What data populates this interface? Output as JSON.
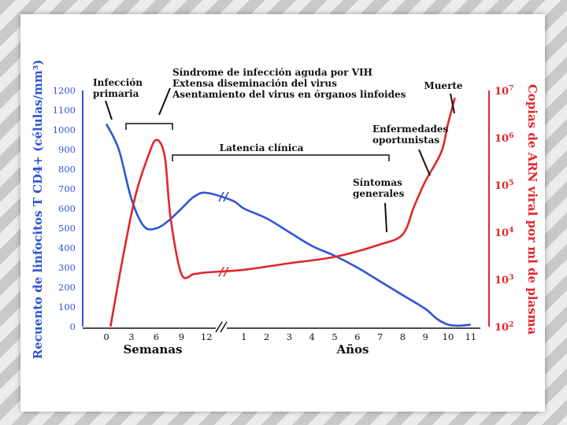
{
  "chart_data": {
    "type": "line",
    "left_axis": {
      "label": "Recuento de linfocitos T CD4+ (células/mm³)",
      "ticks": [
        "0",
        "100",
        "200",
        "300",
        "400",
        "500",
        "600",
        "700",
        "800",
        "900",
        "1000",
        "1100",
        "1200"
      ],
      "range": [
        0,
        1200
      ],
      "color": "#2f55d4"
    },
    "right_axis": {
      "label": "Copias de ARN viral por ml de plasma",
      "ticks": [
        {
          "base": "10",
          "exp": "2"
        },
        {
          "base": "10",
          "exp": "3"
        },
        {
          "base": "10",
          "exp": "4"
        },
        {
          "base": "10",
          "exp": "5"
        },
        {
          "base": "10",
          "exp": "6"
        },
        {
          "base": "10",
          "exp": "7"
        }
      ],
      "scale": "log",
      "color": "#e0262b"
    },
    "x_axis": {
      "weeks_ticks": [
        "0",
        "3",
        "6",
        "9",
        "12"
      ],
      "years_ticks": [
        "1",
        "2",
        "3",
        "4",
        "5",
        "6",
        "7",
        "8",
        "9",
        "10",
        "11"
      ],
      "weeks_label": "Semanas",
      "years_label": "Años",
      "break": true
    },
    "series": [
      {
        "name": "",
        "axis": "left",
        "color": "#2f55d4",
        "points": [
          [
            "w",
            0,
            1030
          ],
          [
            "w",
            1.5,
            900
          ],
          [
            "w",
            3,
            650
          ],
          [
            "w",
            4.5,
            510
          ],
          [
            "w",
            6,
            500
          ],
          [
            "w",
            7.5,
            540
          ],
          [
            "w",
            9,
            600
          ],
          [
            "w",
            10.5,
            660
          ],
          [
            "w",
            12,
            680
          ],
          [
            "y",
            0.5,
            640
          ],
          [
            "y",
            1,
            600
          ],
          [
            "y",
            2,
            550
          ],
          [
            "y",
            3,
            480
          ],
          [
            "y",
            4,
            410
          ],
          [
            "y",
            5,
            360
          ],
          [
            "y",
            6,
            300
          ],
          [
            "y",
            7,
            230
          ],
          [
            "y",
            8,
            160
          ],
          [
            "y",
            9,
            90
          ],
          [
            "y",
            9.5,
            40
          ],
          [
            "y",
            10,
            10
          ],
          [
            "y",
            10.5,
            5
          ],
          [
            "y",
            11,
            10
          ]
        ]
      },
      {
        "name": "",
        "axis": "right",
        "color": "#e0262b",
        "points": [
          [
            "w",
            0.5,
            100
          ],
          [
            "w",
            2,
            3000
          ],
          [
            "w",
            3.5,
            60000
          ],
          [
            "w",
            5,
            400000
          ],
          [
            "w",
            6,
            900000
          ],
          [
            "w",
            7,
            400000
          ],
          [
            "w",
            7.7,
            20000
          ],
          [
            "w",
            9,
            1300
          ],
          [
            "w",
            10.5,
            1300
          ],
          [
            "w",
            12,
            1400
          ],
          [
            "y",
            1,
            1600
          ],
          [
            "y",
            3,
            2200
          ],
          [
            "y",
            5,
            3000
          ],
          [
            "y",
            7,
            5500
          ],
          [
            "y",
            8,
            9000
          ],
          [
            "y",
            8.5,
            35000
          ],
          [
            "y",
            9,
            120000
          ],
          [
            "y",
            9.7,
            500000
          ],
          [
            "y",
            10,
            2000000
          ],
          [
            "y",
            10.3,
            7000000
          ]
        ]
      }
    ],
    "annotations": {
      "infeccion": [
        "Infección",
        "primaria"
      ],
      "sindrome": [
        "Síndrome de infección aguda por VIH",
        "Extensa diseminación del virus",
        "Asentamiento del virus en órganos linfoides"
      ],
      "latencia": "Latencia clínica",
      "sintomas": [
        "Síntomas",
        "generales"
      ],
      "enfermedades": [
        "Enfermedades",
        "oportunistas"
      ],
      "muerte": "Muerte"
    }
  }
}
